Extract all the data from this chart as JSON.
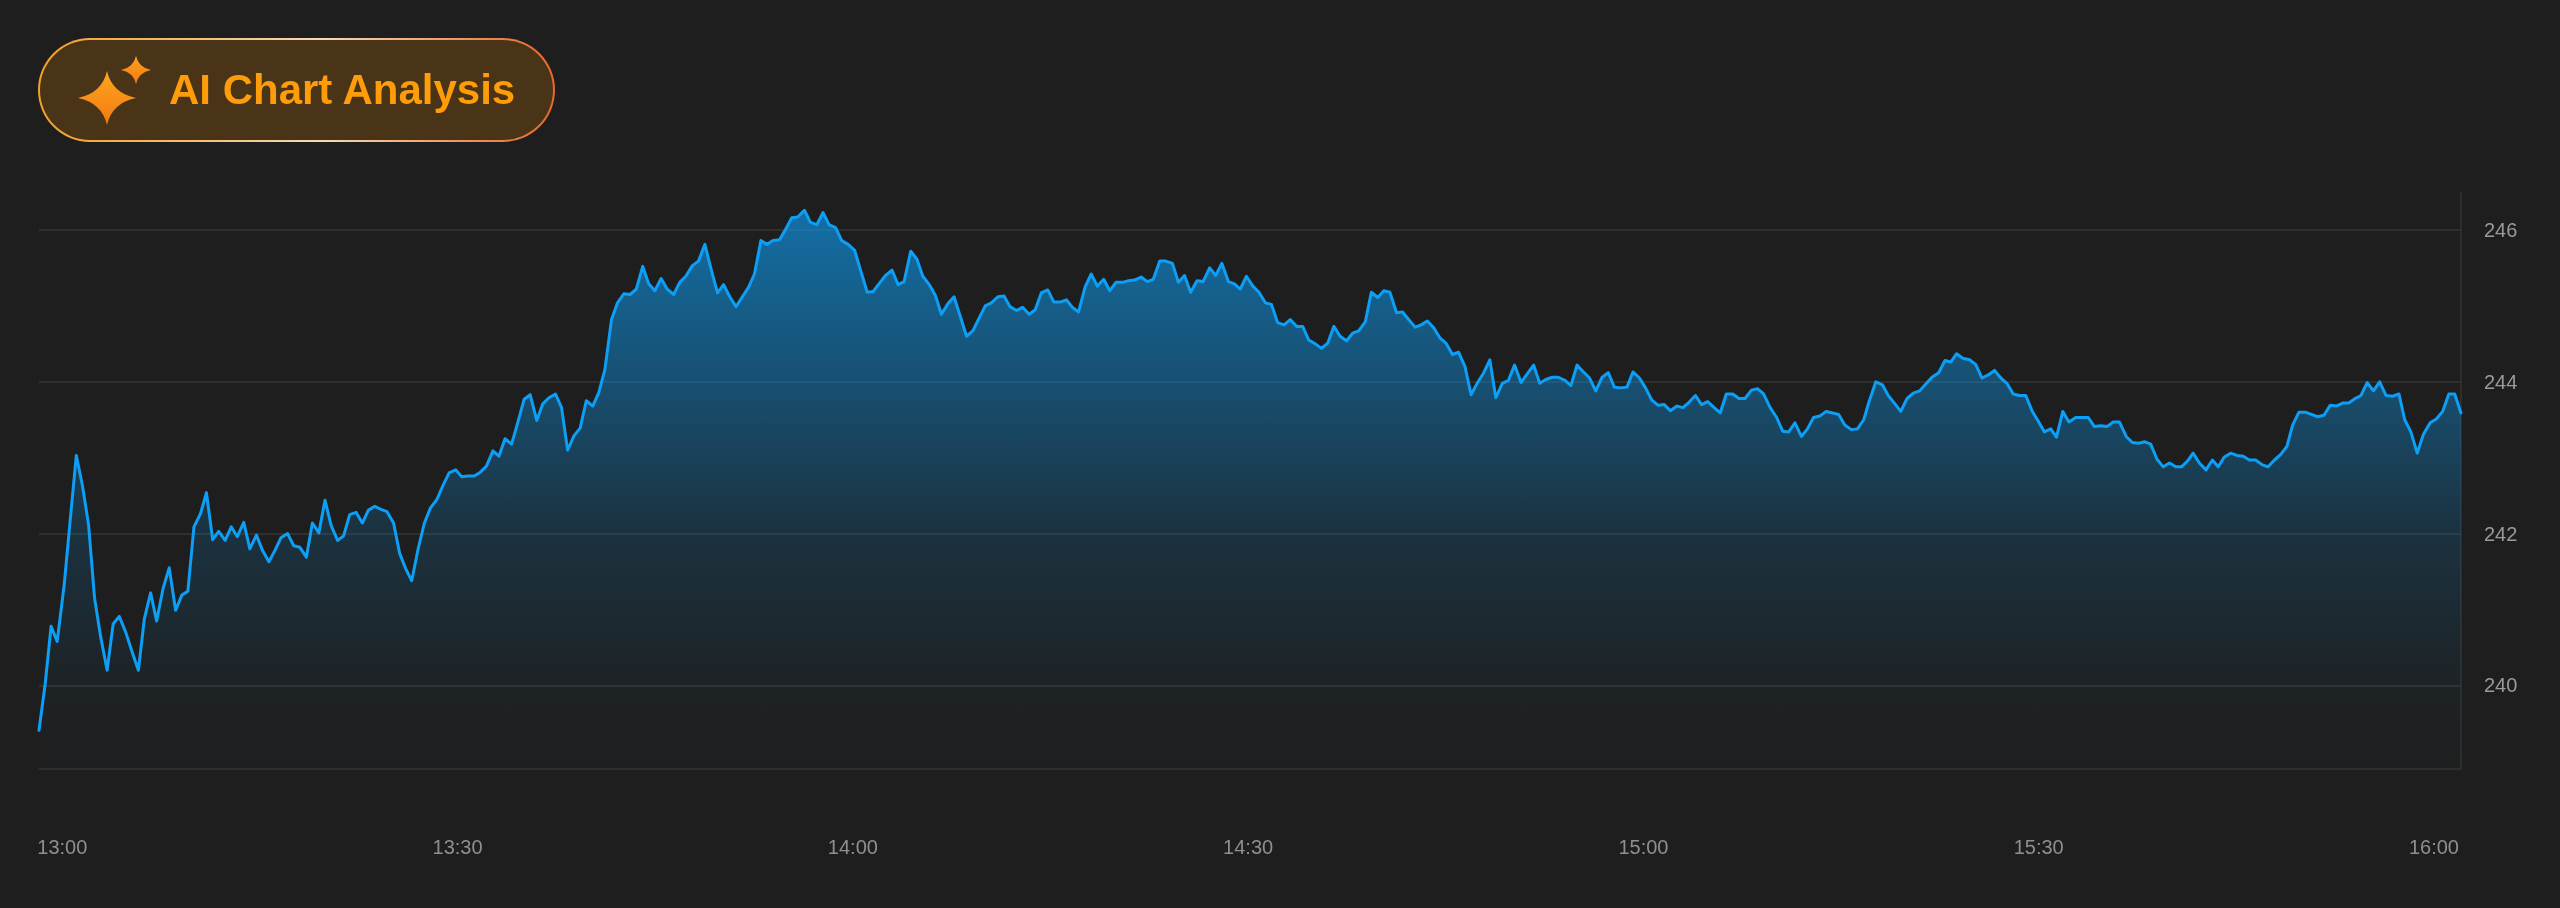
{
  "chart_data": {
    "type": "area",
    "annotations": [
      "AI Chart Analysis"
    ],
    "color": "#0d9ef5",
    "x": [
      12.9705,
      12.9782,
      12.9858,
      12.9935,
      13.0023,
      13.01,
      13.0177,
      13.0253,
      13.0332,
      13.0408,
      13.0485,
      13.0567,
      13.0643,
      13.072,
      13.0803,
      13.088,
      13.0962,
      13.1038,
      13.1117,
      13.1193,
      13.1275,
      13.1352,
      13.1433,
      13.1512,
      13.1588,
      13.1665,
      13.1747,
      13.1823,
      13.1902,
      13.1978,
      13.206,
      13.2137,
      13.2213,
      13.2295,
      13.2372,
      13.2455,
      13.2532,
      13.2613,
      13.269,
      13.2768,
      13.285,
      13.2927,
      13.3005,
      13.3087,
      13.3163,
      13.3245,
      13.3323,
      13.34,
      13.3482,
      13.3558,
      13.3635,
      13.3717,
      13.3795,
      13.3872,
      13.3953,
      13.403,
      13.4107,
      13.419,
      13.4267,
      13.4343,
      13.442,
      13.4503,
      13.458,
      13.4657,
      13.4738,
      13.4817,
      13.4893,
      13.4975,
      13.5052,
      13.5128,
      13.5212,
      13.5288,
      13.5365,
      13.5447,
      13.5523,
      13.56,
      13.5683,
      13.576,
      13.5842,
      13.5918,
      13.6002,
      13.6078,
      13.6155,
      13.6238,
      13.6315,
      13.6392,
      13.6473,
      13.655,
      13.6628,
      13.671,
      13.6787,
      13.6863,
      13.6947,
      13.7023,
      13.7105,
      13.7182,
      13.726,
      13.7342,
      13.7418,
      13.7495,
      13.7575,
      13.7652,
      13.7733,
      13.781,
      13.7887,
      13.797,
      13.8047,
      13.8128,
      13.8205,
      13.8288,
      13.8365,
      13.8442,
      13.8523,
      13.8602,
      13.8678,
      13.8755,
      13.8837,
      13.8913,
      13.899,
      13.9073,
      13.915,
      13.9227,
      13.9303,
      13.9387,
      13.9463,
      13.9545,
      13.9622,
      13.9698,
      13.9782,
      13.9858,
      13.994,
      14.0023,
      14.01,
      14.0182,
      14.0258,
      14.0337,
      14.0413,
      14.0495,
      14.0572,
      14.0648,
      14.0732,
      14.0808,
      14.0885,
      14.0967,
      14.1043,
      14.112,
      14.1203,
      14.128,
      14.1362,
      14.1438,
      14.1517,
      14.1598,
      14.1675,
      14.1752,
      14.1835,
      14.1912,
      14.1988,
      14.207,
      14.2147,
      14.223,
      14.2307,
      14.2383,
      14.2465,
      14.2542,
      14.262,
      14.2702,
      14.2778,
      14.2855,
      14.2938,
      14.3015,
      14.3092,
      14.3173,
      14.325,
      14.3328,
      14.341,
      14.3487,
      14.3563,
      14.3647,
      14.3723,
      14.38,
      14.3882,
      14.3958,
      14.4042,
      14.4118,
      14.4195,
      14.4272,
      14.4353,
      14.443,
      14.4513,
      14.459,
      14.4667,
      14.475,
      14.4827,
      14.49,
      14.4977,
      14.506,
      14.5137,
      14.5218,
      14.5295,
      14.5372,
      14.5455,
      14.5532,
      14.5613,
      14.569,
      14.5767,
      14.585,
      14.5927,
      14.6008,
      14.6085,
      14.6163,
      14.6245,
      14.6322,
      14.6398,
      14.6482,
      14.6558,
      14.664,
      14.6717,
      14.6793,
      14.6877,
      14.6953,
      14.703,
      14.7112,
      14.7188,
      14.7267,
      14.7348,
      14.7425,
      14.7502,
      14.7585,
      14.7662,
      14.7743,
      14.782,
      14.7897,
      14.798,
      14.8057,
      14.8133,
      14.8215,
      14.8293,
      14.837,
      14.8452,
      14.8528,
      14.8612,
      14.8688,
      14.8765,
      14.8847,
      14.8923,
      14.9007,
      14.9083,
      14.916,
      14.9242,
      14.9318,
      14.9397,
      14.9478,
      14.9555,
      14.9632,
      14.9715,
      14.9792,
      14.9868,
      14.995,
      15.0027,
      15.0105,
      15.0187,
      15.0263,
      15.034,
      15.0423,
      15.05,
      15.0577,
      15.0658,
      15.0735,
      15.0813,
      15.0895,
      15.0972,
      15.1048,
      15.113,
      15.1208,
      15.1285,
      15.1367,
      15.1443,
      15.152,
      15.1603,
      15.168,
      15.1762,
      15.1838,
      15.1917,
      15.1998,
      15.2075,
      15.2152,
      15.2233,
      15.2312,
      15.2393,
      15.247,
      15.2547,
      15.263,
      15.2707,
      15.2787,
      15.2855,
      15.294,
      15.3023,
      15.3097,
      15.3182,
      15.3255,
      15.3335,
      15.3413,
      15.3493,
      15.3572,
      15.365,
      15.3735,
      15.3815,
      15.3888,
      15.3962,
      15.404,
      15.4125,
      15.4203,
      15.4283,
      15.4362,
      15.4442,
      15.452,
      15.4598,
      15.4678,
      15.4757,
      15.4837,
      15.4915,
      15.4995,
      15.5073,
      15.5152,
      15.5225,
      15.5305,
      15.5383,
      15.5468,
      15.5548,
      15.5627,
      15.5705,
      15.5785,
      15.5863,
      15.5943,
      15.6022,
      15.6107,
      15.6185,
      15.6265,
      15.6343,
      15.6417,
      15.6497,
      15.6575,
      15.6655,
      15.6733,
      15.6807,
      15.6885,
      15.6953,
      15.7032,
      15.7117,
      15.7197,
      15.727,
      15.7348,
      15.7428,
      15.7507,
      15.7587,
      15.7665,
      15.7743,
      15.7823,
      15.7902,
      15.7982,
      15.806,
      15.814,
      15.8212,
      15.8292,
      15.837,
      15.845,
      15.8528,
      15.8608,
      15.8687,
      15.8765,
      15.8845,
      15.8923,
      15.9003,
      15.9077,
      15.9155,
      15.9235,
      15.9313,
      15.9393,
      15.9477,
      15.9557,
      15.963,
      15.9708,
      15.9788,
      15.9867,
      15.9952,
      16.003,
      16.011,
      16.0188,
      16.0262,
      16.0342
    ],
    "values": [
      239.41,
      240.01,
      240.78,
      240.58,
      241.32,
      242.18,
      243.03,
      242.64,
      242.12,
      241.15,
      240.64,
      240.2,
      240.81,
      240.91,
      240.7,
      240.45,
      240.2,
      240.88,
      241.22,
      240.85,
      241.28,
      241.55,
      240.99,
      241.19,
      241.24,
      242.09,
      242.26,
      242.54,
      241.92,
      242.03,
      241.91,
      242.09,
      241.96,
      242.15,
      241.8,
      241.98,
      241.78,
      241.63,
      241.78,
      241.95,
      242,
      241.84,
      241.82,
      241.69,
      242.14,
      242.01,
      242.44,
      242.11,
      241.91,
      241.97,
      242.25,
      242.28,
      242.14,
      242.31,
      242.36,
      242.32,
      242.29,
      242.14,
      241.74,
      241.54,
      241.38,
      241.81,
      242.14,
      242.34,
      242.45,
      242.64,
      242.8,
      242.84,
      242.75,
      242.76,
      242.76,
      242.81,
      242.89,
      243.09,
      243.02,
      243.25,
      243.18,
      243.46,
      243.77,
      243.83,
      243.49,
      243.71,
      243.79,
      243.84,
      243.66,
      243.1,
      243.29,
      243.39,
      243.75,
      243.68,
      243.86,
      244.16,
      244.82,
      245.04,
      245.16,
      245.15,
      245.22,
      245.52,
      245.29,
      245.2,
      245.36,
      245.22,
      245.15,
      245.31,
      245.39,
      245.53,
      245.59,
      245.81,
      245.49,
      245.17,
      245.28,
      245.12,
      244.99,
      245.12,
      245.24,
      245.42,
      245.86,
      245.81,
      245.86,
      245.87,
      246.01,
      246.16,
      246.17,
      246.26,
      246.1,
      246.07,
      246.23,
      246.07,
      246.03,
      245.86,
      245.81,
      245.73,
      245.46,
      245.18,
      245.19,
      245.3,
      245.4,
      245.47,
      245.28,
      245.32,
      245.72,
      245.62,
      245.39,
      245.28,
      245.14,
      244.89,
      245.03,
      245.12,
      244.85,
      244.6,
      244.67,
      244.84,
      245,
      245.04,
      245.12,
      245.13,
      244.99,
      244.94,
      244.98,
      244.89,
      244.95,
      245.17,
      245.21,
      245.05,
      245.05,
      245.08,
      244.98,
      244.92,
      245.25,
      245.42,
      245.26,
      245.35,
      245.2,
      245.31,
      245.31,
      245.33,
      245.34,
      245.38,
      245.32,
      245.35,
      245.59,
      245.59,
      245.56,
      245.31,
      245.4,
      245.18,
      245.33,
      245.32,
      245.5,
      245.4,
      245.56,
      245.32,
      245.29,
      245.22,
      245.39,
      245.26,
      245.18,
      245.04,
      245.02,
      244.78,
      244.75,
      244.82,
      244.73,
      244.73,
      244.55,
      244.5,
      244.44,
      244.51,
      244.73,
      244.6,
      244.54,
      244.64,
      244.67,
      244.79,
      245.18,
      245.11,
      245.2,
      245.18,
      244.91,
      244.92,
      244.82,
      244.72,
      244.75,
      244.8,
      244.71,
      244.58,
      244.51,
      244.36,
      244.39,
      244.2,
      243.83,
      243.98,
      244.12,
      244.29,
      243.79,
      243.98,
      244.02,
      244.22,
      243.99,
      244.1,
      244.22,
      243.98,
      244.03,
      244.06,
      244.06,
      244.02,
      243.95,
      244.22,
      244.13,
      244.05,
      243.88,
      244.06,
      244.12,
      243.93,
      243.92,
      243.93,
      244.13,
      244.05,
      243.92,
      243.76,
      243.69,
      243.7,
      243.62,
      243.68,
      243.66,
      243.73,
      243.82,
      243.7,
      243.74,
      243.66,
      243.59,
      243.84,
      243.84,
      243.78,
      243.78,
      243.89,
      243.91,
      243.84,
      243.66,
      243.54,
      243.35,
      243.34,
      243.46,
      243.28,
      243.38,
      243.53,
      243.55,
      243.61,
      243.59,
      243.57,
      243.43,
      243.37,
      243.38,
      243.5,
      243.74,
      244,
      243.96,
      243.82,
      243.71,
      243.61,
      243.78,
      243.85,
      243.88,
      243.97,
      244.06,
      244.12,
      244.28,
      244.26,
      244.37,
      244.31,
      244.29,
      244.23,
      244.05,
      244.09,
      244.15,
      244.05,
      243.98,
      243.84,
      243.82,
      243.82,
      243.62,
      243.48,
      243.34,
      243.38,
      243.27,
      243.61,
      243.47,
      243.53,
      243.53,
      243.53,
      243.41,
      243.42,
      243.41,
      243.47,
      243.47,
      243.28,
      243.2,
      243.19,
      243.21,
      243.18,
      242.98,
      242.88,
      242.93,
      242.88,
      242.88,
      242.96,
      243.06,
      242.93,
      242.84,
      242.97,
      242.88,
      243.01,
      243.06,
      243.03,
      243.02,
      242.97,
      242.97,
      242.91,
      242.88,
      242.97,
      243.04,
      243.15,
      243.43,
      243.6,
      243.6,
      243.57,
      243.54,
      243.56,
      243.69,
      243.68,
      243.72,
      243.72,
      243.78,
      243.82,
      243.99,
      243.88,
      244,
      243.82,
      243.81,
      243.84,
      243.5,
      243.34,
      243.06,
      243.31,
      243.46,
      243.51,
      243.61,
      243.84,
      243.84,
      243.59
    ],
    "xlim": [
      12.9705,
      16.0342
    ],
    "xticks": [
      {
        "value": 13,
        "label": "13:00"
      },
      {
        "value": 13.5,
        "label": "13:30"
      },
      {
        "value": 14,
        "label": "14:00"
      },
      {
        "value": 14.5,
        "label": "14:30"
      },
      {
        "value": 15,
        "label": "15:00"
      },
      {
        "value": 15.5,
        "label": "15:30"
      },
      {
        "value": 16,
        "label": "16:00"
      }
    ],
    "ylim": [
      238.9,
      246.5
    ],
    "yticks": [
      240,
      242,
      244,
      246
    ],
    "grid": "y"
  }
}
